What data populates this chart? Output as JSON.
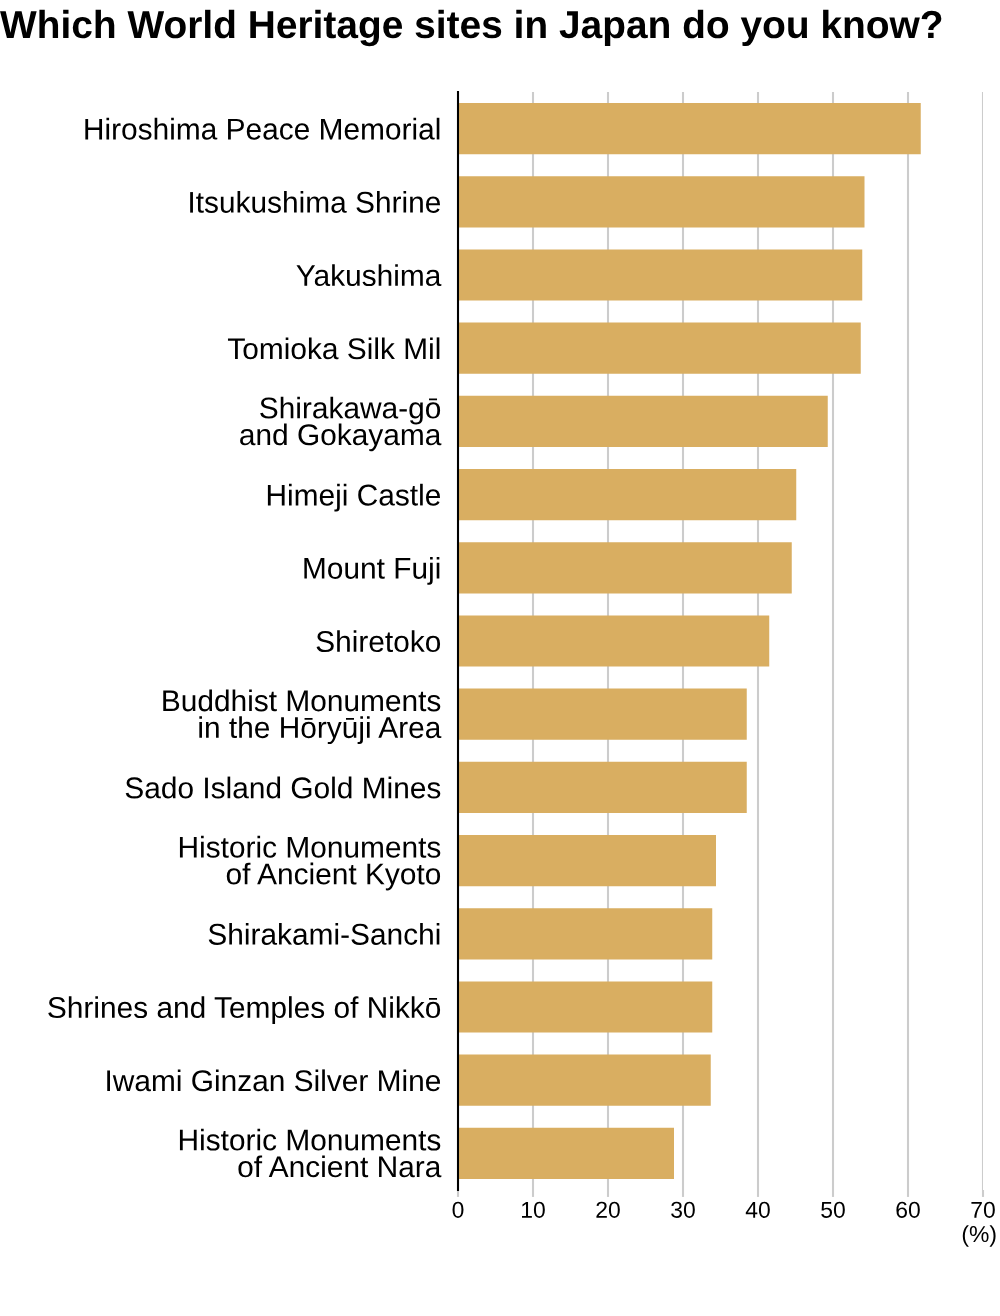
{
  "chart_data": {
    "type": "bar",
    "orientation": "horizontal",
    "title": "Which World Heritage sites in Japan do you know?",
    "xlabel": "(%)",
    "categories": [
      "Hiroshima Peace Memorial",
      "Itsukushima Shrine",
      "Yakushima",
      "Tomioka Silk Mil",
      "Shirakawa-gō\nand Gokayama",
      "Himeji Castle",
      "Mount Fuji",
      "Shiretoko",
      "Buddhist Monuments\nin the Hōryūji Area",
      "Sado Island Gold Mines",
      "Historic Monuments\nof Ancient Kyoto",
      "Shirakami-Sanchi",
      "Shrines and Temples of Nikkō",
      "Iwami Ginzan Silver Mine",
      "Historic Monuments\nof Ancient Nara"
    ],
    "values": [
      61.7,
      54.2,
      53.9,
      53.7,
      49.3,
      45.1,
      44.5,
      41.5,
      38.5,
      38.5,
      34.4,
      33.9,
      33.9,
      33.7,
      28.8
    ],
    "color": "#d9ae61",
    "xlim": [
      0,
      70
    ],
    "xticks": [
      0,
      10,
      20,
      30,
      40,
      50,
      60,
      70
    ],
    "grid": "x"
  }
}
